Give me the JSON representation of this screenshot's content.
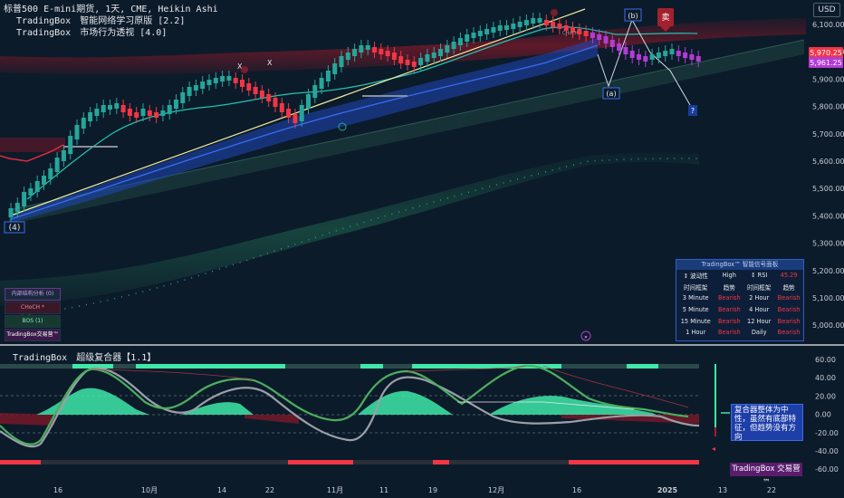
{
  "header": {
    "symbol_line": "标普500 E-mini期货, 1天, CME, Heikin Ashi",
    "indicators": [
      {
        "brand": "TradingBox",
        "name": "智能网络学习原版 [2.2]"
      },
      {
        "brand": "TradingBox",
        "name": "市场行为透视 [4.0]"
      }
    ],
    "currency": "USD"
  },
  "price_axis": {
    "ticks": [
      "6,100.00",
      "6,000.00",
      "5,900.00",
      "5,800.00",
      "5,700.00",
      "5,600.00",
      "5,500.00",
      "5,400.00",
      "5,300.00",
      "5,200.00",
      "5,100.00",
      "5,000.00"
    ],
    "badge_upper": "5,970.25",
    "badge_lower": "5,961.25",
    "badge_upper_color": "#f23645",
    "badge_lower_color": "#b33bd6"
  },
  "time_axis": {
    "labels": [
      "16",
      "10月",
      "14",
      "22",
      "11月",
      "11",
      "19",
      "12月",
      "16",
      "2025",
      "13",
      "22"
    ]
  },
  "chart_annotations": {
    "wave_4": "(4)",
    "wave_a": "(a)",
    "wave_b": "(b)",
    "question": "?",
    "sell": "卖",
    "x_marks": [
      "X",
      "X"
    ],
    "choch_small": "CHoCH"
  },
  "signal_panel": {
    "title": "TradingBox™ 智能信号面板",
    "rows": [
      [
        {
          "t": "↕ 波动性",
          "c": "wh"
        },
        {
          "t": "High",
          "c": "wh"
        },
        {
          "t": "↕ RSI",
          "c": "wh"
        },
        {
          "t": "45.29",
          "c": "red"
        }
      ],
      [
        {
          "t": "时间框架",
          "c": "wh"
        },
        {
          "t": "趋势",
          "c": "wh"
        },
        {
          "t": "时间框架",
          "c": "wh"
        },
        {
          "t": "趋势",
          "c": "wh"
        }
      ],
      [
        {
          "t": "3 Minute",
          "c": "wh"
        },
        {
          "t": "Bearish",
          "c": "red"
        },
        {
          "t": "2 Hour",
          "c": "wh"
        },
        {
          "t": "Bearish",
          "c": "red"
        }
      ],
      [
        {
          "t": "5 Minute",
          "c": "wh"
        },
        {
          "t": "Bearish",
          "c": "red"
        },
        {
          "t": "4 Hour",
          "c": "wh"
        },
        {
          "t": "Bearish",
          "c": "red"
        }
      ],
      [
        {
          "t": "15 Minute",
          "c": "wh"
        },
        {
          "t": "Bearish",
          "c": "red"
        },
        {
          "t": "12 Hour",
          "c": "wh"
        },
        {
          "t": "Bearish",
          "c": "red"
        }
      ],
      [
        {
          "t": "1 Hour",
          "c": "wh"
        },
        {
          "t": "Bearish",
          "c": "red"
        },
        {
          "t": "Daily",
          "c": "wh"
        },
        {
          "t": "Bearish",
          "c": "red"
        }
      ]
    ]
  },
  "structure_legend": {
    "title": "内部结构分析 (0)",
    "choch": "CHoCH *",
    "bos": "BOS (1)",
    "brand": "TradingBox交易营™"
  },
  "oscillator": {
    "brand": "TradingBox",
    "name": "超级复合器【1.1】",
    "ticks": [
      "60.00",
      "40.00",
      "20.00",
      "0.00",
      "-20.00",
      "-40.00",
      "-60.00"
    ],
    "note": "复合器整体为中性，虽然有底部特征，但趋势没有方向",
    "brand_box": "TradingBox 交易营™"
  },
  "colors": {
    "background": "#0c1b2a",
    "bull": "#26a69a",
    "bear": "#f23645",
    "magenta": "#b33bd6",
    "osc_green": "#4cae5f",
    "osc_mint": "#3ee8a8"
  }
}
